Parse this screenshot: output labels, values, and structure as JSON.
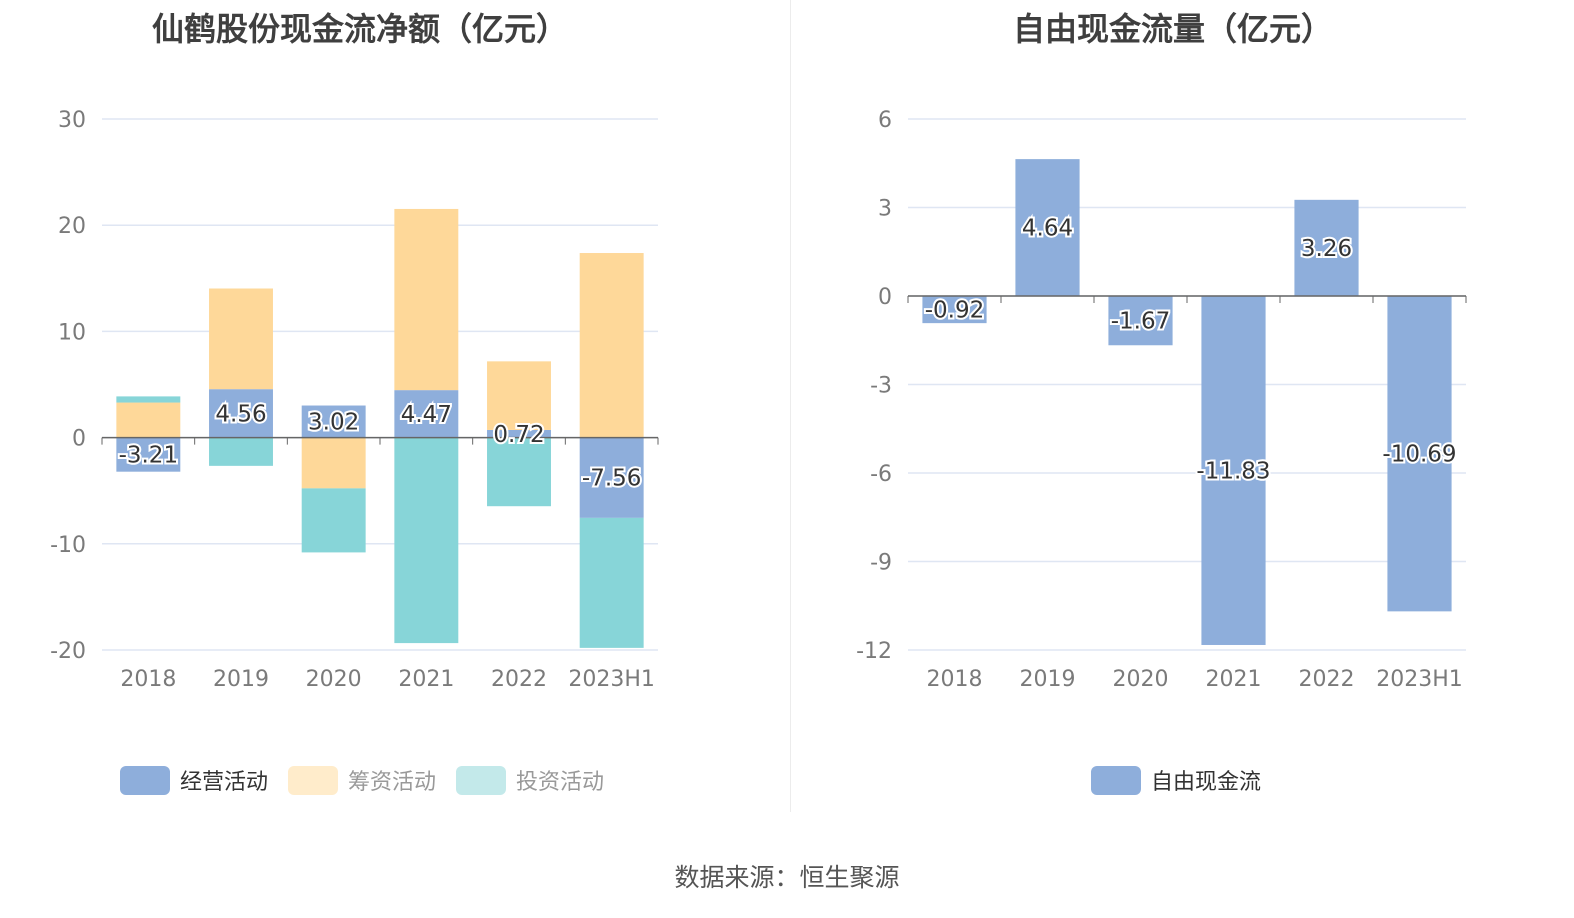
{
  "footer": {
    "source": "数据来源：恒生聚源"
  },
  "colors": {
    "operating": "#8eaedb",
    "financing": "#fed899",
    "investing": "#87d5d8",
    "financing_legend": "#ffeccb",
    "investing_legend": "#c3e9ea",
    "free_cash_flow": "#8eaedb"
  },
  "chart_data": [
    {
      "type": "bar",
      "stacked": true,
      "title": "仙鹤股份现金流净额（亿元）",
      "categories": [
        "2018",
        "2019",
        "2020",
        "2021",
        "2022",
        "2023H1"
      ],
      "ylim": [
        -20,
        30
      ],
      "yticks": [
        "30",
        "20",
        "10",
        "0",
        "-10",
        "-20"
      ],
      "grid": true,
      "legend_position": "bottom",
      "series": [
        {
          "name": "经营活动",
          "values": [
            -3.21,
            4.56,
            3.02,
            4.47,
            0.72,
            -7.56
          ],
          "labels": [
            "-3.21",
            "4.56",
            "3.02",
            "4.47",
            "0.72",
            "-7.56"
          ]
        },
        {
          "name": "筹资活动",
          "values": [
            3.3,
            9.48,
            -4.78,
            17.06,
            6.46,
            17.38
          ]
        },
        {
          "name": "投资活动",
          "values": [
            0.58,
            -2.66,
            -6.03,
            -19.35,
            -6.46,
            -12.24
          ]
        }
      ]
    },
    {
      "type": "bar",
      "title": "自由现金流量（亿元）",
      "categories": [
        "2018",
        "2019",
        "2020",
        "2021",
        "2022",
        "2023H1"
      ],
      "ylim": [
        -12,
        6
      ],
      "yticks": [
        "6",
        "3",
        "0",
        "-3",
        "-6",
        "-9",
        "-12"
      ],
      "grid": true,
      "legend_position": "bottom",
      "series": [
        {
          "name": "自由现金流",
          "values": [
            -0.92,
            4.64,
            -1.67,
            -11.83,
            3.26,
            -10.69
          ],
          "labels": [
            "-0.92",
            "4.64",
            "-1.67",
            "-11.83",
            "3.26",
            "-10.69"
          ]
        }
      ]
    }
  ]
}
